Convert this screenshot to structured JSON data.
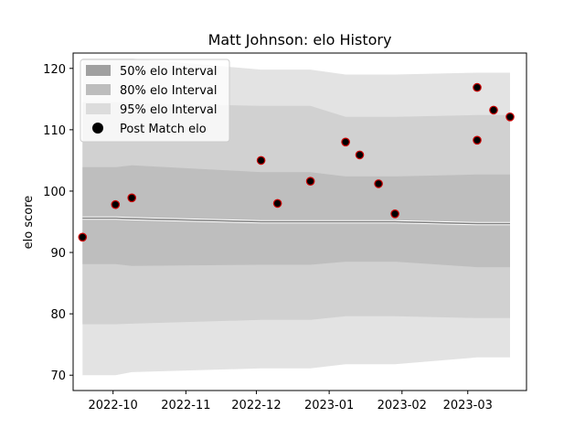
{
  "chart_data": {
    "type": "area",
    "title": "Matt Johnson: elo History",
    "xlabel": "",
    "ylabel": "elo score",
    "x_ticks": [
      "2022-10",
      "2022-11",
      "2022-12",
      "2023-01",
      "2023-02",
      "2023-03"
    ],
    "y_ticks": [
      70,
      80,
      90,
      100,
      110,
      120
    ],
    "xlim": [
      "2022-09-14",
      "2023-03-26"
    ],
    "ylim": [
      67.5,
      122.5
    ],
    "grid": false,
    "legend_position": "upper left",
    "legend": [
      {
        "label": "50% elo Interval",
        "kind": "band",
        "color": "#a0a0a0"
      },
      {
        "label": "80% elo Interval",
        "kind": "band",
        "color": "#bdbdbd"
      },
      {
        "label": "95% elo Interval",
        "kind": "band",
        "color": "#dcdcdc"
      },
      {
        "label": "Post Match elo",
        "kind": "marker",
        "color": "#000000"
      }
    ],
    "x": [
      "2022-09-18",
      "2022-10-02",
      "2022-10-09",
      "2022-12-03",
      "2022-12-10",
      "2022-12-24",
      "2023-01-08",
      "2023-01-14",
      "2023-01-22",
      "2023-01-29",
      "2023-03-05",
      "2023-03-12",
      "2023-03-19"
    ],
    "series": [
      {
        "name": "95% elo Interval",
        "role": "band",
        "lower": [
          70.0,
          70.0,
          70.5,
          71.1,
          71.1,
          71.1,
          71.8,
          71.8,
          71.8,
          71.8,
          72.9,
          72.9,
          72.9
        ],
        "upper": [
          121.6,
          121.6,
          121.6,
          119.8,
          119.8,
          119.8,
          119.0,
          119.0,
          119.0,
          119.0,
          119.3,
          119.3,
          119.3
        ],
        "color": "#e3e3e3"
      },
      {
        "name": "80% elo Interval",
        "role": "band",
        "lower": [
          78.3,
          78.3,
          78.4,
          79.0,
          79.0,
          79.0,
          79.6,
          79.6,
          79.6,
          79.6,
          79.3,
          79.3,
          79.3
        ],
        "upper": [
          114.5,
          114.5,
          114.3,
          113.9,
          113.9,
          113.9,
          112.1,
          112.1,
          112.1,
          112.1,
          112.4,
          112.4,
          112.4
        ],
        "color": "#d1d1d1"
      },
      {
        "name": "50% elo Interval",
        "role": "band",
        "lower": [
          88.1,
          88.1,
          87.8,
          88.0,
          88.0,
          88.0,
          88.5,
          88.5,
          88.5,
          88.5,
          87.6,
          87.6,
          87.6
        ],
        "upper": [
          103.9,
          103.9,
          104.2,
          103.1,
          103.1,
          103.1,
          102.4,
          102.4,
          102.4,
          102.4,
          102.7,
          102.7,
          102.7
        ],
        "color": "#bebebe"
      },
      {
        "name": "",
        "role": "line",
        "values": [
          95.6,
          95.6,
          95.5,
          95.0,
          95.0,
          95.0,
          95.0,
          95.0,
          95.0,
          95.0,
          94.7,
          94.7,
          94.7
        ],
        "color": "#7f7f7f"
      },
      {
        "name": "Post Match elo",
        "role": "scatter",
        "x": [
          "2022-09-18",
          "2022-10-02",
          "2022-10-09",
          "2022-12-03",
          "2022-12-10",
          "2022-12-24",
          "2023-01-08",
          "2023-01-14",
          "2023-01-22",
          "2023-01-29",
          "2023-03-05",
          "2023-03-05",
          "2023-03-12",
          "2023-03-19"
        ],
        "values": [
          92.5,
          97.8,
          98.9,
          105.0,
          98.0,
          101.6,
          108.0,
          105.9,
          101.2,
          96.3,
          116.9,
          108.3,
          113.2,
          112.1
        ],
        "color": "#000000",
        "edgecolor": "#cc0000"
      }
    ]
  }
}
